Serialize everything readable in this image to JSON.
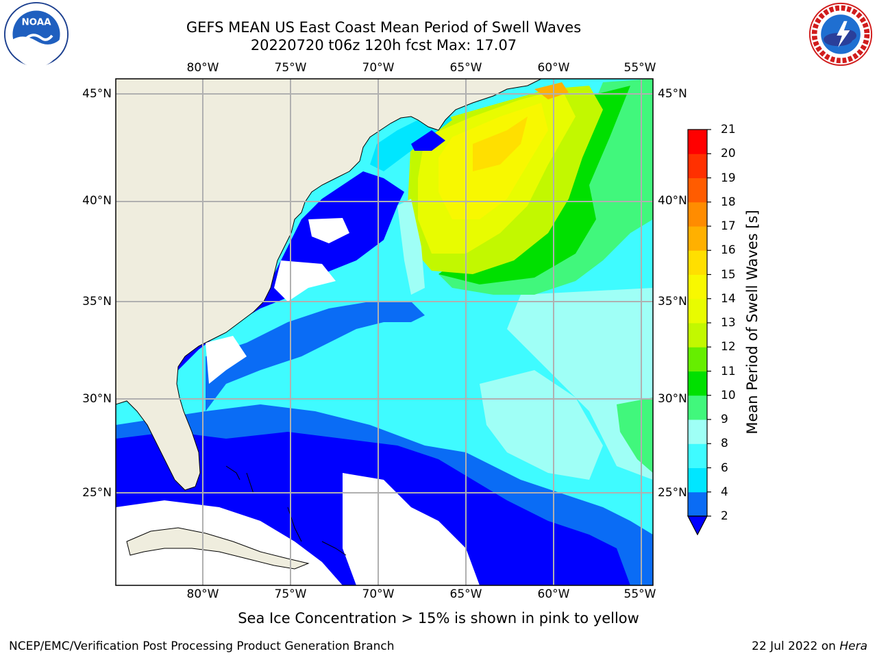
{
  "header": {
    "title_line1": "GEFS MEAN US East Coast Mean Period of Swell Waves",
    "title_line2": "20220720 t06z 120h fcst   Max: 17.07"
  },
  "logos": {
    "left": "noaa-logo",
    "left_text": "NOAA",
    "left_ring_text": "NATIONAL OCEANIC AND ATMOSPHERIC ADMINISTRATION · U.S. DEPARTMENT OF COMMERCE",
    "right": "national-weather-service-logo",
    "right_ring_text": "NATIONAL WEATHER SERVICE"
  },
  "map": {
    "lon_labels": [
      "80°W",
      "75°W",
      "70°W",
      "65°W",
      "60°W",
      "55°W"
    ],
    "lat_labels": [
      "45°N",
      "40°N",
      "35°N",
      "30°N",
      "25°N"
    ],
    "colors": {
      "land": "#efedde",
      "no_data": "#ffffff",
      "gridline": "#b0b0b0"
    }
  },
  "colorbar": {
    "title": "Mean Period of Swell Waves [s]",
    "levels": [
      "2",
      "4",
      "6",
      "8",
      "9",
      "10",
      "11",
      "12",
      "13",
      "14",
      "15",
      "16",
      "17",
      "18",
      "19",
      "20",
      "21"
    ],
    "colors": [
      "#0a6cf5",
      "#00e6ff",
      "#3ffbff",
      "#9ffff6",
      "#41f77c",
      "#00e000",
      "#66ee00",
      "#c2f800",
      "#e8fc00",
      "#f8f800",
      "#ffdf00",
      "#ffb000",
      "#ff8c00",
      "#ff5c00",
      "#ff3000",
      "#ff0000"
    ],
    "under_color": "#0000ff"
  },
  "footer": {
    "note": "Sea Ice Concentration > 15% is shown in pink to yellow",
    "credit": "NCEP/EMC/Verification Post Processing Product Generation Branch",
    "date": "22 Jul 2022 on ",
    "host": "Hera"
  }
}
